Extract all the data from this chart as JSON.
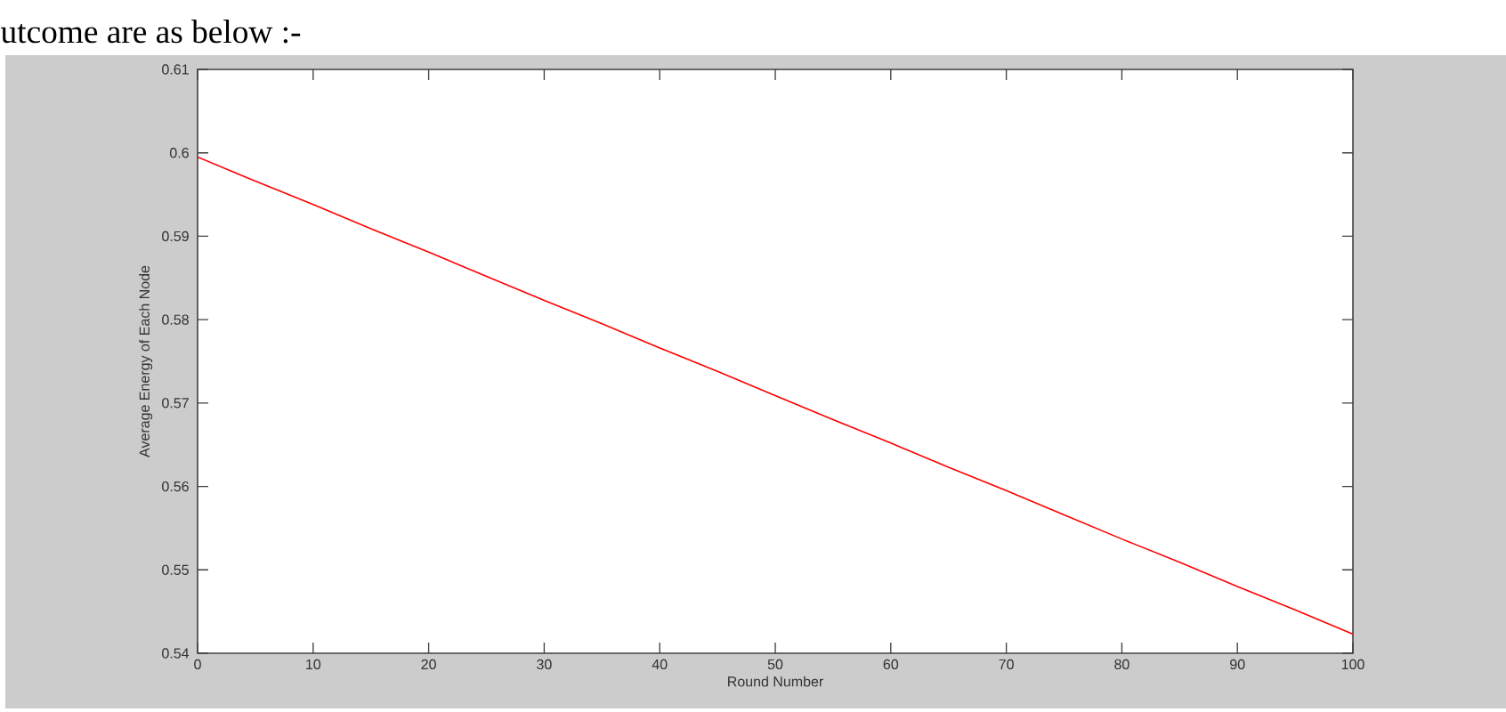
{
  "chart_data": {
    "type": "line",
    "annotations": [
      "utcome are as below :-"
    ],
    "xlabel": "Round Number",
    "ylabel": "Average Energy of Each Node",
    "x": [
      0,
      5,
      10,
      15,
      20,
      25,
      30,
      35,
      40,
      45,
      50,
      55,
      60,
      65,
      70,
      75,
      80,
      85,
      90,
      95,
      100
    ],
    "values": [
      0.5995,
      0.5966,
      0.5938,
      0.5909,
      0.5881,
      0.5852,
      0.5823,
      0.5795,
      0.5766,
      0.5738,
      0.5709,
      0.568,
      0.5652,
      0.5623,
      0.5595,
      0.5566,
      0.5537,
      0.5509,
      0.548,
      0.5452,
      0.5423
    ],
    "color": "#ff0000",
    "xlim": [
      0,
      100
    ],
    "ylim": [
      0.54,
      0.61
    ],
    "xticks": [
      0,
      10,
      20,
      30,
      40,
      50,
      60,
      70,
      80,
      90,
      100
    ],
    "yticks": [
      0.54,
      0.55,
      0.56,
      0.57,
      0.58,
      0.59,
      0.6,
      0.61
    ]
  }
}
